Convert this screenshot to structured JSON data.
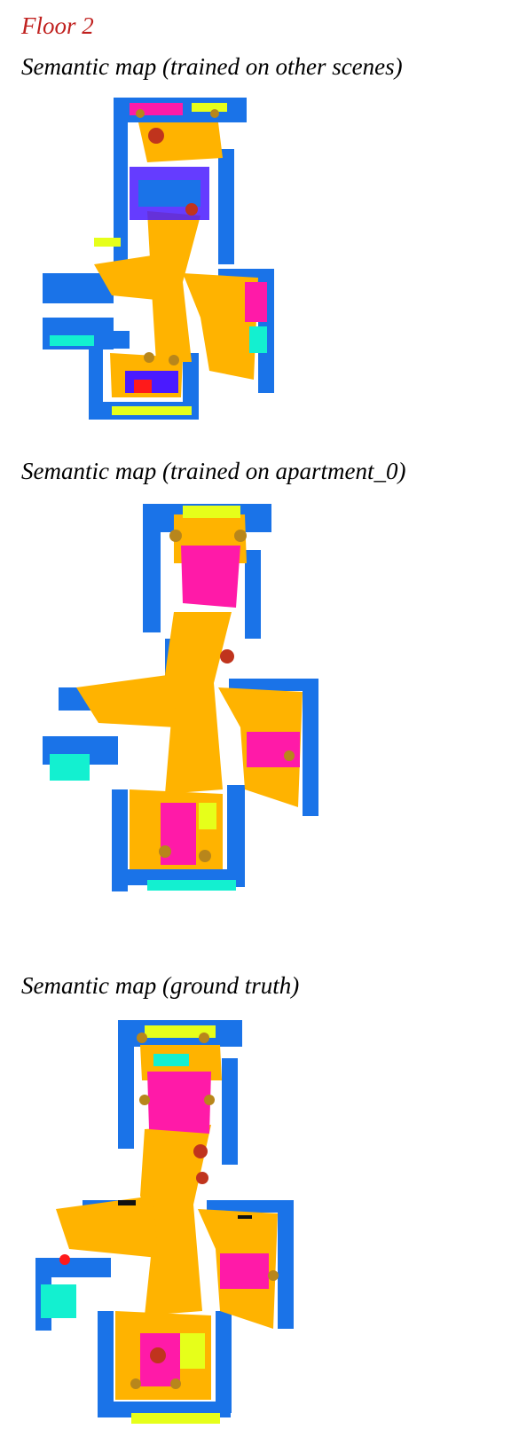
{
  "page": {
    "floor_title": "Floor 2",
    "panels": [
      {
        "caption": "Semantic map (trained on other scenes)"
      },
      {
        "caption": "Semantic map (trained on apartment_0)"
      },
      {
        "caption": "Semantic map (ground truth)"
      }
    ]
  },
  "colors": {
    "wall": "#1a73e8",
    "floor": "#ffb300",
    "bed": "#ff1aa8",
    "window": "#e6ff1a",
    "ceiling": "#13f0d0",
    "chair": "#b8861b",
    "misc": "#c0341d",
    "black": "#111111",
    "red": "#ff1a1a",
    "purple": "#4a1aff"
  }
}
